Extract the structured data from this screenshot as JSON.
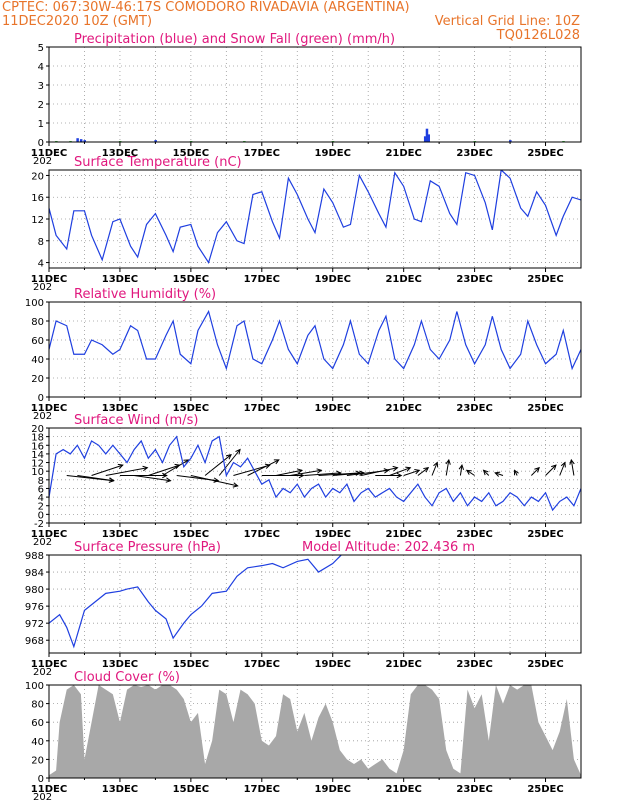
{
  "header": {
    "line1_left": "CPTEC:  067:30W-46:17S  COMODORO RIVADAVIA (ARGENTINA)",
    "line2_left": "11DEC2020 10Z (GMT)",
    "line2_right": "Vertical Grid Line: 10Z",
    "line3_right": "TQ0126L028"
  },
  "colors": {
    "header": "#e8742a",
    "title": "#e0187e",
    "line": "#1f3fe0",
    "snow": "#2fb52f",
    "cloud": "#a8a8a8",
    "arrow": "#000000",
    "grid": "#9a9a9a"
  },
  "x_axis": {
    "ticks": [
      "11DEC",
      "13DEC",
      "15DEC",
      "17DEC",
      "19DEC",
      "21DEC",
      "23DEC",
      "25DEC"
    ],
    "tick_days": [
      0,
      2,
      4,
      6,
      8,
      10,
      12,
      14
    ],
    "range_days": [
      0,
      15
    ],
    "year_fragment": "202"
  },
  "chart_data": [
    {
      "id": "precip",
      "type": "bar",
      "title": "Precipitation (blue) and Snow Fall (green) (mm/h)",
      "ylim": [
        0,
        5
      ],
      "yticks": [
        0,
        1,
        2,
        3,
        4,
        5
      ],
      "series": [
        {
          "name": "Precipitation",
          "color": "#1f3fe0",
          "points": [
            [
              0.8,
              0.2
            ],
            [
              0.9,
              0.15
            ],
            [
              1.0,
              0.1
            ],
            [
              3.0,
              0.1
            ],
            [
              10.6,
              0.3
            ],
            [
              10.65,
              0.7
            ],
            [
              10.7,
              0.4
            ],
            [
              13.0,
              0.1
            ]
          ]
        },
        {
          "name": "Snow Fall",
          "color": "#2fb52f",
          "points": [
            [
              0.2,
              0.05
            ],
            [
              0.6,
              0.05
            ],
            [
              2.0,
              0.05
            ],
            [
              4.0,
              0.05
            ],
            [
              5.5,
              0.05
            ],
            [
              8.0,
              0.05
            ],
            [
              12.0,
              0.05
            ],
            [
              14.5,
              0.05
            ]
          ]
        }
      ]
    },
    {
      "id": "temperature",
      "type": "line",
      "title": "Surface Temperature (nC)",
      "ylim": [
        3,
        21
      ],
      "yticks": [
        4,
        8,
        12,
        16,
        20
      ],
      "x": [
        0,
        0.2,
        0.5,
        0.7,
        1.0,
        1.2,
        1.5,
        1.8,
        2.0,
        2.3,
        2.5,
        2.75,
        3.0,
        3.3,
        3.5,
        3.7,
        4.0,
        4.2,
        4.5,
        4.75,
        5.0,
        5.3,
        5.5,
        5.75,
        6.0,
        6.3,
        6.5,
        6.75,
        7.0,
        7.3,
        7.5,
        7.75,
        8.0,
        8.3,
        8.5,
        8.75,
        9.0,
        9.3,
        9.5,
        9.75,
        10.0,
        10.3,
        10.5,
        10.75,
        11.0,
        11.3,
        11.5,
        11.75,
        12.0,
        12.3,
        12.5,
        12.75,
        13.0,
        13.3,
        13.5,
        13.75,
        14.0,
        14.3,
        14.5,
        14.75,
        15.0
      ],
      "series": [
        {
          "name": "",
          "values": [
            14,
            9,
            6.5,
            13.5,
            13.5,
            9,
            4.5,
            11.5,
            12,
            7,
            5,
            11,
            13,
            9,
            6,
            10.5,
            11,
            7,
            4,
            9.5,
            11.5,
            8,
            7.5,
            16.5,
            17,
            11.5,
            8.5,
            19.5,
            16.5,
            12,
            9.5,
            17.5,
            15,
            10.5,
            11,
            20,
            17,
            13,
            10.5,
            20.5,
            18,
            12,
            11.5,
            19,
            18,
            13,
            11,
            20.5,
            20,
            15,
            10,
            21,
            19.5,
            14,
            12.5,
            17,
            14.5,
            9,
            12.5,
            16,
            15.5
          ]
        }
      ]
    },
    {
      "id": "humidity",
      "type": "line",
      "title": "Relative Humidity (%)",
      "ylim": [
        0,
        100
      ],
      "yticks": [
        0,
        20,
        40,
        60,
        80,
        100
      ],
      "x": [
        0,
        0.2,
        0.5,
        0.7,
        1.0,
        1.2,
        1.5,
        1.8,
        2.0,
        2.3,
        2.5,
        2.75,
        3.0,
        3.3,
        3.5,
        3.7,
        4.0,
        4.2,
        4.5,
        4.75,
        5.0,
        5.3,
        5.5,
        5.75,
        6.0,
        6.3,
        6.5,
        6.75,
        7.0,
        7.3,
        7.5,
        7.75,
        8.0,
        8.3,
        8.5,
        8.75,
        9.0,
        9.3,
        9.5,
        9.75,
        10.0,
        10.3,
        10.5,
        10.75,
        11.0,
        11.3,
        11.5,
        11.75,
        12.0,
        12.3,
        12.5,
        12.75,
        13.0,
        13.3,
        13.5,
        13.75,
        14.0,
        14.3,
        14.5,
        14.75,
        15.0
      ],
      "series": [
        {
          "name": "",
          "values": [
            50,
            80,
            75,
            45,
            45,
            60,
            55,
            45,
            50,
            75,
            70,
            40,
            40,
            65,
            80,
            45,
            35,
            70,
            90,
            55,
            30,
            75,
            80,
            40,
            35,
            60,
            80,
            50,
            35,
            65,
            75,
            40,
            30,
            55,
            80,
            45,
            35,
            70,
            85,
            40,
            30,
            55,
            80,
            50,
            40,
            60,
            90,
            55,
            35,
            55,
            85,
            50,
            30,
            45,
            80,
            55,
            35,
            45,
            70,
            30,
            50
          ]
        }
      ]
    },
    {
      "id": "wind",
      "type": "line",
      "title": "Surface Wind (m/s)",
      "ylim": [
        -2,
        20
      ],
      "yticks": [
        -2,
        0,
        2,
        4,
        6,
        8,
        10,
        12,
        14,
        16,
        18,
        20
      ],
      "x": [
        0,
        0.2,
        0.4,
        0.6,
        0.8,
        1.0,
        1.2,
        1.4,
        1.6,
        1.8,
        2.0,
        2.2,
        2.4,
        2.6,
        2.8,
        3.0,
        3.2,
        3.4,
        3.6,
        3.8,
        4.0,
        4.2,
        4.4,
        4.6,
        4.8,
        5.0,
        5.2,
        5.4,
        5.6,
        5.8,
        6.0,
        6.2,
        6.4,
        6.6,
        6.8,
        7.0,
        7.2,
        7.4,
        7.6,
        7.8,
        8.0,
        8.2,
        8.4,
        8.6,
        8.8,
        9.0,
        9.2,
        9.4,
        9.6,
        9.8,
        10.0,
        10.2,
        10.4,
        10.6,
        10.8,
        11.0,
        11.2,
        11.4,
        11.6,
        11.8,
        12.0,
        12.2,
        12.4,
        12.6,
        12.8,
        13.0,
        13.2,
        13.4,
        13.6,
        13.8,
        14.0,
        14.2,
        14.4,
        14.6,
        14.8,
        15.0
      ],
      "series": [
        {
          "name": "",
          "values": [
            4,
            14,
            15,
            14,
            16,
            13,
            17,
            16,
            14,
            16,
            14,
            12,
            15,
            17,
            13,
            15,
            12,
            16,
            18,
            11,
            13,
            16,
            12,
            17,
            18,
            9,
            12,
            11,
            13,
            10,
            7,
            8,
            4,
            6,
            5,
            7,
            4,
            6,
            7,
            4,
            6,
            5,
            7,
            3,
            5,
            6,
            4,
            5,
            6,
            4,
            3,
            5,
            7,
            4,
            2,
            5,
            6,
            3,
            5,
            2,
            4,
            3,
            5,
            2,
            3,
            5,
            4,
            2,
            4,
            3,
            5,
            1,
            3,
            4,
            2,
            6
          ]
        }
      ],
      "vectors": {
        "x": [
          0.5,
          0.8,
          1.2,
          1.6,
          2.0,
          2.4,
          2.8,
          3.2,
          3.6,
          4.0,
          4.4,
          4.8,
          5.2,
          5.6,
          6.0,
          6.4,
          6.8,
          7.2,
          7.6,
          8.0,
          8.4,
          8.8,
          9.2,
          9.6,
          10.0,
          10.4,
          10.8,
          11.2,
          11.6,
          12.0,
          12.4,
          12.8,
          13.2,
          13.6,
          14.0,
          14.4,
          14.8
        ],
        "u": [
          9,
          7,
          6,
          8,
          9,
          7,
          6,
          5,
          8,
          9,
          5,
          4,
          7,
          6,
          8,
          5,
          6,
          7,
          8,
          6,
          8,
          7,
          5,
          4,
          3,
          2,
          1,
          0.5,
          0.3,
          -1.5,
          -1,
          -1.5,
          -0.5,
          1.5,
          2,
          1,
          -0.5
        ],
        "v": [
          -1,
          -1,
          2,
          1.5,
          0,
          -1,
          2,
          3,
          -1,
          -2,
          4,
          5,
          2,
          3,
          0,
          1,
          1,
          0.5,
          0.5,
          0.5,
          1,
          1.5,
          0,
          1.5,
          1,
          1.5,
          2.5,
          3,
          2,
          1,
          1,
          0.5,
          1,
          1.5,
          2,
          2.5,
          3
        ]
      }
    },
    {
      "id": "pressure",
      "type": "line",
      "title": "Surface Pressure (hPa)",
      "subtitle": "Model Altitude: 202.436 m",
      "ylim": [
        965,
        988
      ],
      "yticks": [
        968,
        972,
        976,
        980,
        984,
        988
      ],
      "x": [
        0,
        0.3,
        0.5,
        0.7,
        1.0,
        1.3,
        1.6,
        2.0,
        2.2,
        2.5,
        2.8,
        3.0,
        3.3,
        3.5,
        3.8,
        4.0,
        4.3,
        4.6,
        5.0,
        5.3,
        5.6,
        6.0,
        6.3,
        6.6,
        7.0,
        7.3,
        7.6,
        8.0,
        8.3,
        8.6,
        9.0,
        9.3,
        9.6,
        10.0,
        10.3,
        10.6,
        11.0
      ],
      "series": [
        {
          "name": "",
          "values": [
            972,
            974,
            971,
            966.5,
            975,
            977,
            979,
            979.5,
            980,
            980.5,
            977,
            975,
            973,
            968.5,
            972,
            974,
            976,
            979,
            979.5,
            983,
            985,
            985.5,
            986,
            985,
            986.5,
            987,
            984,
            986,
            988.5,
            989,
            990,
            988.5,
            990,
            990.5,
            988.5,
            988.5,
            990
          ]
        }
      ]
    },
    {
      "id": "cloud",
      "type": "area",
      "title": "Cloud Cover (%)",
      "ylim": [
        0,
        100
      ],
      "yticks": [
        0,
        20,
        40,
        60,
        80,
        100
      ],
      "x": [
        0,
        0.2,
        0.3,
        0.5,
        0.7,
        0.9,
        1.0,
        1.2,
        1.4,
        1.6,
        1.8,
        2.0,
        2.2,
        2.4,
        2.6,
        2.8,
        3.0,
        3.2,
        3.4,
        3.6,
        3.8,
        4.0,
        4.2,
        4.4,
        4.6,
        4.8,
        5.0,
        5.2,
        5.4,
        5.6,
        5.8,
        6.0,
        6.2,
        6.4,
        6.6,
        6.8,
        7.0,
        7.2,
        7.4,
        7.6,
        7.8,
        8.0,
        8.2,
        8.4,
        8.6,
        8.8,
        9.0,
        9.2,
        9.4,
        9.6,
        9.8,
        10.0,
        10.2,
        10.4,
        10.6,
        10.8,
        11.0,
        11.2,
        11.4,
        11.6,
        11.8,
        12.0,
        12.2,
        12.4,
        12.6,
        12.8,
        13.0,
        13.2,
        13.4,
        13.6,
        13.8,
        14.0,
        14.2,
        14.4,
        14.6,
        14.8,
        15.0
      ],
      "series": [
        {
          "name": "",
          "values": [
            3,
            8,
            60,
            95,
            100,
            90,
            20,
            60,
            100,
            95,
            90,
            60,
            95,
            100,
            98,
            100,
            95,
            100,
            100,
            95,
            85,
            60,
            70,
            15,
            40,
            95,
            90,
            60,
            95,
            90,
            80,
            40,
            35,
            45,
            90,
            85,
            50,
            70,
            40,
            65,
            80,
            60,
            30,
            20,
            15,
            20,
            10,
            15,
            20,
            10,
            5,
            30,
            90,
            100,
            100,
            95,
            85,
            30,
            10,
            5,
            95,
            75,
            90,
            40,
            100,
            80,
            100,
            95,
            100,
            100,
            60,
            45,
            30,
            50,
            85,
            20,
            3
          ]
        }
      ]
    }
  ]
}
